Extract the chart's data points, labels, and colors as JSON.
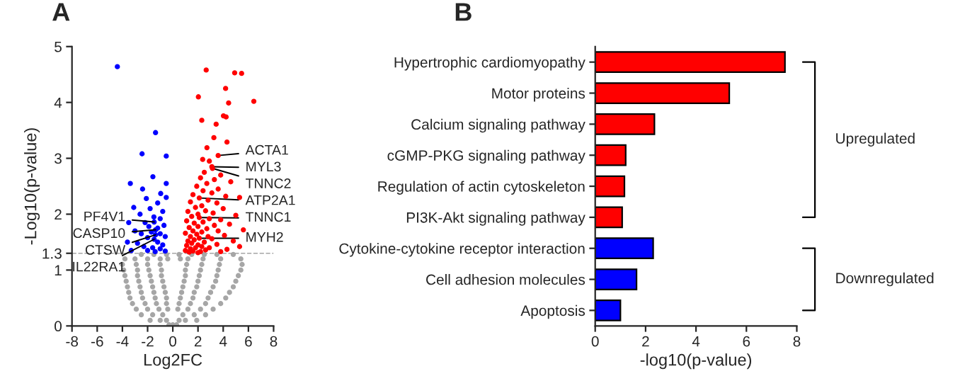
{
  "chart_data": [
    {
      "type": "scatter",
      "title": "A",
      "xlabel": "Log2FC",
      "ylabel": "-Log10(p-value)",
      "xlim": [
        -8,
        8
      ],
      "xticks": [
        -8,
        -6,
        -4,
        -2,
        0,
        2,
        4,
        6,
        8
      ],
      "ylim": [
        0,
        5
      ],
      "yticks": [
        0,
        1,
        1.3,
        2,
        3,
        4,
        5
      ],
      "grid": false,
      "marker": "circle",
      "series": [
        {
          "color": "#a6a6a6",
          "x": [
            -0.3,
            0,
            0.3,
            -1.8,
            -1,
            -0.5,
            0.5,
            1,
            1.9,
            -2.5,
            -1.6,
            -0.8,
            0.8,
            1.7,
            2.6,
            -2.9,
            -2,
            -1.1,
            -0.4,
            0.4,
            1.2,
            2.2,
            3.2,
            -3.2,
            -2.2,
            -1.3,
            -0.5,
            0.5,
            1.4,
            2.6,
            3.8,
            -3.4,
            -2.4,
            -1.4,
            -0.5,
            0.6,
            1.6,
            2.8,
            4.2,
            -3.5,
            -2.5,
            -1.5,
            -0.6,
            0.7,
            1.7,
            3,
            4.5,
            -3.6,
            -2.6,
            -1.6,
            -0.7,
            0.8,
            1.9,
            3.2,
            4.8,
            -3.7,
            -2.7,
            -1.7,
            -0.8,
            0.9,
            2,
            3.4,
            5,
            -3.8,
            -2.8,
            -1.8,
            -0.9,
            1,
            2.1,
            3.5,
            5.2,
            -3.9,
            -2.8,
            -1.9,
            -0.9,
            1,
            2.2,
            3.6,
            5.4,
            -4,
            -2.9,
            -2,
            -1,
            1.1,
            2.3,
            3.7,
            5.5,
            -3.8,
            -3,
            -2,
            -1,
            -0.4,
            0.6,
            1.2,
            2.4,
            3.8,
            5.4,
            -2.5,
            -1.5,
            -0.5,
            0.5,
            1.5,
            2.5,
            3.5,
            4.8
          ],
          "values": [
            0.02,
            0.02,
            0.02,
            0.1,
            0.1,
            0.1,
            0.1,
            0.1,
            0.1,
            0.2,
            0.2,
            0.2,
            0.2,
            0.2,
            0.2,
            0.3,
            0.3,
            0.3,
            0.3,
            0.3,
            0.3,
            0.3,
            0.3,
            0.4,
            0.4,
            0.4,
            0.4,
            0.4,
            0.4,
            0.4,
            0.4,
            0.5,
            0.5,
            0.5,
            0.5,
            0.5,
            0.5,
            0.5,
            0.5,
            0.6,
            0.6,
            0.6,
            0.6,
            0.6,
            0.6,
            0.6,
            0.6,
            0.7,
            0.7,
            0.7,
            0.7,
            0.7,
            0.7,
            0.7,
            0.7,
            0.8,
            0.8,
            0.8,
            0.8,
            0.8,
            0.8,
            0.8,
            0.8,
            0.9,
            0.9,
            0.9,
            0.9,
            0.9,
            0.9,
            0.9,
            0.9,
            1.0,
            1.0,
            1.0,
            1.0,
            1.0,
            1.0,
            1.0,
            1.0,
            1.1,
            1.1,
            1.1,
            1.1,
            1.1,
            1.1,
            1.1,
            1.1,
            1.2,
            1.2,
            1.2,
            1.2,
            1.2,
            1.2,
            1.2,
            1.2,
            1.2,
            1.2,
            1.28,
            1.28,
            1.28,
            1.28,
            1.28,
            1.28,
            1.28,
            1.28
          ]
        },
        {
          "color": "#0000ff",
          "x": [
            -4.4,
            -1.37,
            -2.44,
            -0.52,
            -1.58,
            -3.37,
            -0.52,
            -2.4,
            -0.96,
            -0.52,
            -2.1,
            -1.2,
            -3.1,
            -1.8,
            -0.8,
            -2.6,
            -1.5,
            -1.0,
            -3.5,
            -2.2,
            -1.48,
            -0.7,
            -1.9,
            -1.2,
            -3.0,
            -1.37,
            -2.5,
            -1.7,
            -1.0,
            -1.37,
            -0.6,
            -2.0,
            -1.48,
            -3.6,
            -2.8,
            -1.2,
            -0.8,
            -2.3,
            -1.6,
            -1.0,
            -3.3,
            -2.0,
            -0.6,
            -1.4
          ],
          "values": [
            4.64,
            3.46,
            3.08,
            3.04,
            2.67,
            2.55,
            2.55,
            2.45,
            2.37,
            2.3,
            2.28,
            2.2,
            2.12,
            2.1,
            2.05,
            2.0,
            1.95,
            1.92,
            1.85,
            1.85,
            1.86,
            1.8,
            1.78,
            1.75,
            1.7,
            1.72,
            1.65,
            1.68,
            1.65,
            1.63,
            1.6,
            1.58,
            1.55,
            1.5,
            1.48,
            1.5,
            1.45,
            1.42,
            1.4,
            1.38,
            1.35,
            1.35,
            1.34,
            1.33
          ]
        },
        {
          "color": "#ff0000",
          "x": [
            2.65,
            4.91,
            5.46,
            4.19,
            6.43,
            2.03,
            4.43,
            2.3,
            4.02,
            4.23,
            3.44,
            3.26,
            4.3,
            2.71,
            3.6,
            2.37,
            2.9,
            3.1,
            3.15,
            2.5,
            3.8,
            2.2,
            3.3,
            4.6,
            2.7,
            1.9,
            3.6,
            2.4,
            3.1,
            1.6,
            4.2,
            2.1,
            5.3,
            2.8,
            1.4,
            3.5,
            2.3,
            1.8,
            4.0,
            2.6,
            1.2,
            3.2,
            2.0,
            5.0,
            1.5,
            2.1,
            2.9,
            3.8,
            1.1,
            2.4,
            1.7,
            4.5,
            3.3,
            2.0,
            1.3,
            2.7,
            5.6,
            1.6,
            3.6,
            2.3,
            1.0,
            1.9,
            4.1,
            2.8,
            1.4,
            2.1,
            3.1,
            1.7,
            4.8,
            1.2,
            2.5,
            1.5,
            3.5,
            2.0,
            1.1,
            2.3,
            5.3,
            1.8,
            2.9,
            1.4,
            4.3,
            2.6,
            1.0,
            1.6,
            3.8,
            2.2,
            1.3,
            2.0
          ],
          "values": [
            4.58,
            4.53,
            4.52,
            4.25,
            4.02,
            4.1,
            3.99,
            3.68,
            3.76,
            3.74,
            3.61,
            3.37,
            3.29,
            3.19,
            3.05,
            2.98,
            2.95,
            2.85,
            2.82,
            2.75,
            2.7,
            2.65,
            2.62,
            2.58,
            2.55,
            2.5,
            2.45,
            2.42,
            2.38,
            2.35,
            2.32,
            2.29,
            2.3,
            2.25,
            2.22,
            2.2,
            2.15,
            2.12,
            2.1,
            2.06,
            2.05,
            2.02,
            2.0,
            1.98,
            1.96,
            1.94,
            1.92,
            1.9,
            1.88,
            1.86,
            1.84,
            1.82,
            1.8,
            1.78,
            1.76,
            1.74,
            1.72,
            1.7,
            1.7,
            1.68,
            1.66,
            1.64,
            1.62,
            1.6,
            1.6,
            1.57,
            1.56,
            1.54,
            1.52,
            1.52,
            1.5,
            1.48,
            1.46,
            1.45,
            1.44,
            1.42,
            1.42,
            1.4,
            1.4,
            1.38,
            1.37,
            1.36,
            1.35,
            1.34,
            1.33,
            1.33,
            1.32,
            1.31
          ]
        }
      ],
      "ref_lines": [
        {
          "axis": "y",
          "value": 1.3,
          "color": "#a6a6a6",
          "line_style": "dashed"
        }
      ],
      "annotations": [
        {
          "text": "ACTA1",
          "x": 3.6,
          "y": 3.05
        },
        {
          "text": "MYL3",
          "x": 3.1,
          "y": 2.85
        },
        {
          "text": "TNNC2",
          "x": 3.15,
          "y": 2.82
        },
        {
          "text": "ATP2A1",
          "x": 2.1,
          "y": 2.29
        },
        {
          "text": "TNNC1",
          "x": 2.1,
          "y": 1.94
        },
        {
          "text": "MYH2",
          "x": 2.1,
          "y": 1.57
        },
        {
          "text": "PF4V1",
          "x": -1.48,
          "y": 1.86
        },
        {
          "text": "CASP10",
          "x": -1.37,
          "y": 1.72
        },
        {
          "text": "CTSW",
          "x": -1.37,
          "y": 1.63
        },
        {
          "text": "IL22RA1",
          "x": -1.48,
          "y": 1.55
        }
      ]
    },
    {
      "type": "bar",
      "title": "B",
      "orientation": "horizontal",
      "xlabel": "-log10(p-value)",
      "xlim": [
        0,
        8
      ],
      "xticks": [
        0,
        2,
        4,
        6,
        8
      ],
      "grid": false,
      "categories": [
        "Hypertrophic cardiomyopathy",
        "Motor proteins",
        "Calcium signaling pathway",
        "cGMP-PKG signaling pathway",
        "Regulation of actin cytoskeleton",
        "PI3K-Akt signaling pathway",
        "Cytokine-cytokine receptor interaction",
        "Cell adhesion molecules",
        "Apoptosis"
      ],
      "values": [
        7.53,
        5.32,
        2.35,
        1.21,
        1.16,
        1.07,
        2.3,
        1.64,
        1.0
      ],
      "colors": [
        "#ff0000",
        "#ff0000",
        "#ff0000",
        "#ff0000",
        "#ff0000",
        "#ff0000",
        "#0000ff",
        "#0000ff",
        "#0000ff"
      ],
      "annotations": [
        "Upregulated",
        "Downregulated"
      ]
    }
  ]
}
